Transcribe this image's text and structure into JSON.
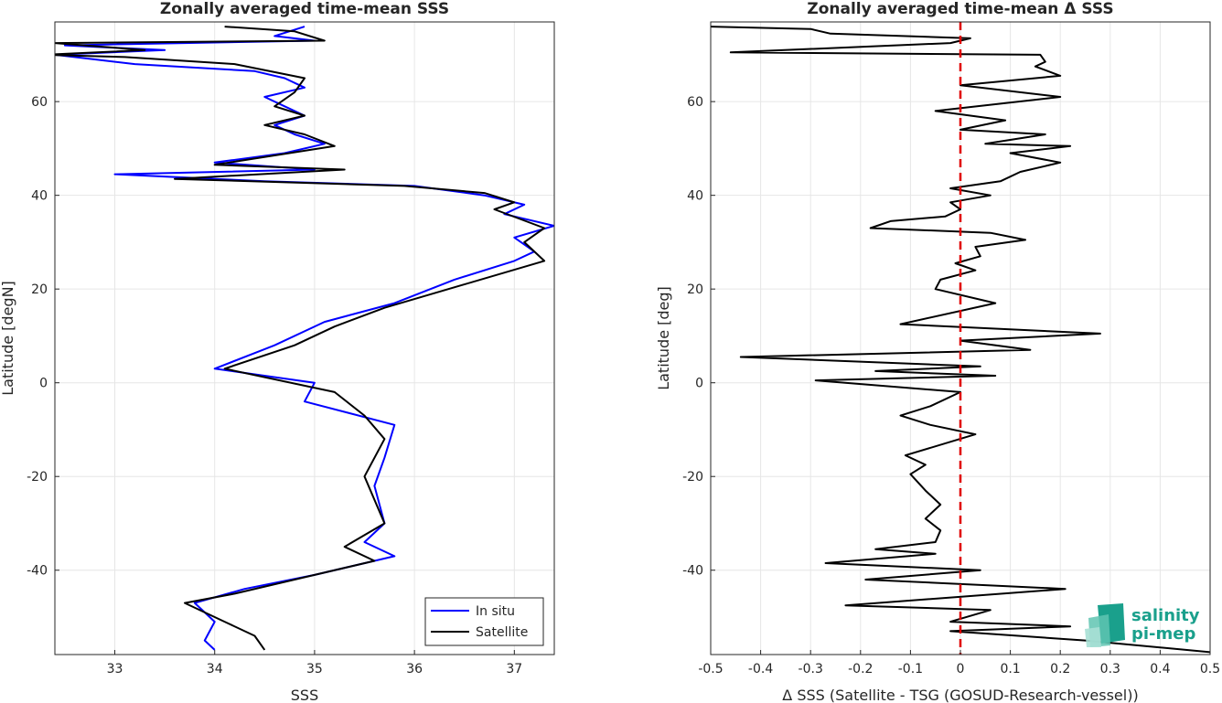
{
  "chart_data": [
    {
      "type": "line",
      "title": "Zonally averaged time-mean SSS",
      "xlabel": "SSS",
      "ylabel": "Latitude [degN]",
      "xlim": [
        32.4,
        37.4
      ],
      "ylim": [
        -58,
        77
      ],
      "xticks": [
        33,
        34,
        35,
        36,
        37
      ],
      "yticks": [
        -40,
        -20,
        0,
        20,
        40,
        60
      ],
      "grid": true,
      "legend": {
        "placement": "bottom-right",
        "entries": [
          "In situ",
          "Satellite"
        ]
      },
      "series": [
        {
          "name": "In situ",
          "color": "#0000ff",
          "points": [
            [
              34.9,
              76
            ],
            [
              34.6,
              74
            ],
            [
              35.0,
              73
            ],
            [
              32.5,
              72
            ],
            [
              33.5,
              71
            ],
            [
              32.4,
              70
            ],
            [
              32.8,
              69
            ],
            [
              33.2,
              68
            ],
            [
              34.4,
              66.5
            ],
            [
              34.7,
              65
            ],
            [
              34.9,
              63
            ],
            [
              34.5,
              61
            ],
            [
              34.7,
              59
            ],
            [
              34.9,
              57
            ],
            [
              34.6,
              55
            ],
            [
              34.8,
              53
            ],
            [
              35.1,
              51
            ],
            [
              34.7,
              49
            ],
            [
              34.0,
              47
            ],
            [
              35.0,
              45.5
            ],
            [
              33.0,
              44.5
            ],
            [
              34.5,
              43
            ],
            [
              36.0,
              42
            ],
            [
              36.7,
              40
            ],
            [
              37.1,
              38
            ],
            [
              36.9,
              36
            ],
            [
              37.4,
              33.5
            ],
            [
              37.0,
              31
            ],
            [
              37.2,
              28
            ],
            [
              37.0,
              26
            ],
            [
              36.4,
              22
            ],
            [
              35.8,
              17
            ],
            [
              35.1,
              13
            ],
            [
              34.6,
              8
            ],
            [
              34.0,
              3
            ],
            [
              35.0,
              0
            ],
            [
              34.9,
              -4
            ],
            [
              35.8,
              -9
            ],
            [
              35.7,
              -16
            ],
            [
              35.6,
              -22
            ],
            [
              35.7,
              -30
            ],
            [
              35.5,
              -34
            ],
            [
              35.8,
              -37
            ],
            [
              35.4,
              -39
            ],
            [
              35.0,
              -41
            ],
            [
              34.3,
              -44
            ],
            [
              33.8,
              -47
            ],
            [
              34.0,
              -51
            ],
            [
              33.9,
              -55
            ],
            [
              34.0,
              -57
            ]
          ]
        },
        {
          "name": "Satellite",
          "color": "#000000",
          "points": [
            [
              34.1,
              76
            ],
            [
              34.8,
              75
            ],
            [
              35.1,
              73
            ],
            [
              32.4,
              72.5
            ],
            [
              33.3,
              71
            ],
            [
              32.3,
              70
            ],
            [
              33.1,
              69.5
            ],
            [
              34.2,
              68
            ],
            [
              34.9,
              65
            ],
            [
              34.8,
              62
            ],
            [
              34.6,
              59
            ],
            [
              34.9,
              57
            ],
            [
              34.5,
              55
            ],
            [
              34.9,
              53
            ],
            [
              35.2,
              50.5
            ],
            [
              34.0,
              46.5
            ],
            [
              35.3,
              45.5
            ],
            [
              33.6,
              43.5
            ],
            [
              35.9,
              42
            ],
            [
              36.7,
              40.5
            ],
            [
              37.0,
              38.5
            ],
            [
              36.8,
              37
            ],
            [
              37.3,
              33
            ],
            [
              37.1,
              30
            ],
            [
              37.3,
              26
            ],
            [
              36.5,
              21
            ],
            [
              35.7,
              16
            ],
            [
              35.2,
              12
            ],
            [
              34.8,
              8
            ],
            [
              34.1,
              3
            ],
            [
              35.2,
              -2
            ],
            [
              35.5,
              -7
            ],
            [
              35.7,
              -12
            ],
            [
              35.5,
              -20
            ],
            [
              35.7,
              -30
            ],
            [
              35.3,
              -35
            ],
            [
              35.6,
              -38
            ],
            [
              35.0,
              -41
            ],
            [
              34.2,
              -45
            ],
            [
              33.7,
              -47
            ],
            [
              34.1,
              -51
            ],
            [
              34.4,
              -54
            ],
            [
              34.5,
              -57
            ]
          ]
        }
      ]
    },
    {
      "type": "line",
      "title": "Zonally averaged time-mean Δ SSS",
      "xlabel": "Δ SSS (Satellite - TSG (GOSUD-Research-vessel))",
      "ylabel": "Latitude [deg]",
      "xlim": [
        -0.5,
        0.5
      ],
      "ylim": [
        -58,
        77
      ],
      "xticks": [
        -0.5,
        -0.4,
        -0.3,
        -0.2,
        -0.1,
        0,
        0.1,
        0.2,
        0.3,
        0.4,
        0.5
      ],
      "yticks": [
        -40,
        -20,
        0,
        20,
        40,
        60
      ],
      "grid": true,
      "reference_line": {
        "x": 0,
        "color": "#e00000",
        "style": "dashed"
      },
      "series": [
        {
          "name": "",
          "color": "#000000",
          "points": [
            [
              -0.5,
              76
            ],
            [
              -0.3,
              75.5
            ],
            [
              -0.26,
              74.5
            ],
            [
              0.02,
              73.5
            ],
            [
              -0.02,
              72.5
            ],
            [
              -0.46,
              70.5
            ],
            [
              0.16,
              70
            ],
            [
              0.17,
              68.5
            ],
            [
              0.15,
              67.5
            ],
            [
              0.2,
              65.5
            ],
            [
              0.0,
              63.5
            ],
            [
              0.2,
              61
            ],
            [
              -0.05,
              58
            ],
            [
              0.09,
              56
            ],
            [
              0.0,
              54
            ],
            [
              0.17,
              53
            ],
            [
              0.05,
              51
            ],
            [
              0.22,
              50.5
            ],
            [
              0.1,
              49
            ],
            [
              0.2,
              47
            ],
            [
              0.12,
              45
            ],
            [
              0.08,
              43
            ],
            [
              -0.02,
              41.5
            ],
            [
              0.06,
              40
            ],
            [
              -0.02,
              38.5
            ],
            [
              0.0,
              37
            ],
            [
              -0.03,
              35.5
            ],
            [
              -0.14,
              34.5
            ],
            [
              -0.18,
              33
            ],
            [
              0.06,
              32
            ],
            [
              0.13,
              30.5
            ],
            [
              0.03,
              29
            ],
            [
              0.04,
              27
            ],
            [
              -0.01,
              25.5
            ],
            [
              0.03,
              24
            ],
            [
              -0.04,
              22
            ],
            [
              -0.05,
              20
            ],
            [
              0.07,
              17
            ],
            [
              -0.12,
              12.5
            ],
            [
              0.28,
              10.5
            ],
            [
              0.0,
              9
            ],
            [
              0.14,
              7
            ],
            [
              -0.44,
              5.5
            ],
            [
              0.04,
              3.5
            ],
            [
              -0.17,
              2.5
            ],
            [
              0.07,
              1.5
            ],
            [
              -0.29,
              0.5
            ],
            [
              0.0,
              -2
            ],
            [
              -0.06,
              -5
            ],
            [
              -0.12,
              -7
            ],
            [
              -0.06,
              -9
            ],
            [
              0.03,
              -11
            ],
            [
              -0.11,
              -15.5
            ],
            [
              -0.07,
              -17.5
            ],
            [
              -0.1,
              -19.5
            ],
            [
              -0.07,
              -23
            ],
            [
              -0.04,
              -26
            ],
            [
              -0.07,
              -29
            ],
            [
              -0.04,
              -31.5
            ],
            [
              -0.05,
              -34
            ],
            [
              -0.17,
              -35.5
            ],
            [
              -0.05,
              -36.5
            ],
            [
              -0.27,
              -38.5
            ],
            [
              0.04,
              -40
            ],
            [
              -0.19,
              -42
            ],
            [
              0.21,
              -44
            ],
            [
              -0.23,
              -47.5
            ],
            [
              0.06,
              -48.5
            ],
            [
              -0.02,
              -51
            ],
            [
              0.22,
              -52
            ],
            [
              -0.02,
              -53
            ],
            [
              0.25,
              -55
            ],
            [
              0.5,
              -57.5
            ]
          ]
        }
      ]
    }
  ],
  "logo": {
    "line1": "salinity",
    "line2": "pi-mep"
  }
}
